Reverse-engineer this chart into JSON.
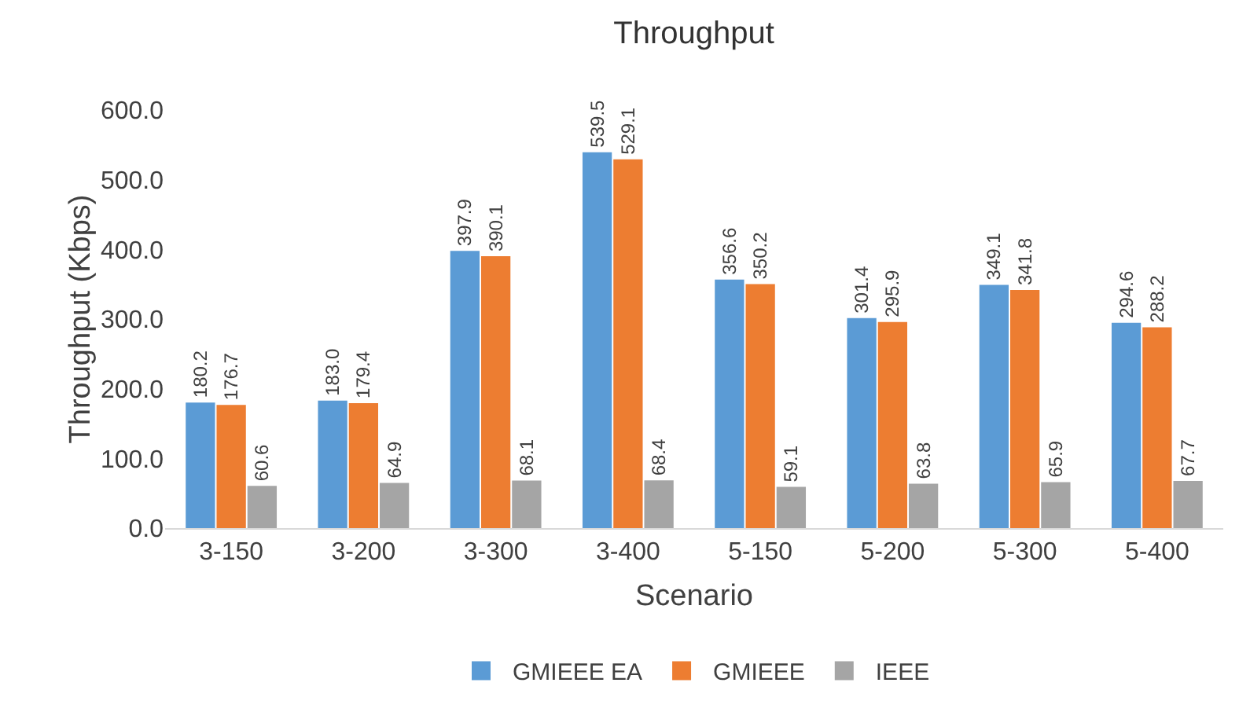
{
  "chart_data": {
    "type": "bar",
    "title": "Throughput",
    "xlabel": "Scenario",
    "ylabel": "Throughput (Kbps)",
    "categories": [
      "3-150",
      "3-200",
      "3-300",
      "3-400",
      "5-150",
      "5-200",
      "5-300",
      "5-400"
    ],
    "series": [
      {
        "name": "GMIEEE EA",
        "color": "#5b9bd5",
        "values": [
          180.2,
          183.0,
          397.9,
          539.5,
          356.6,
          301.4,
          349.1,
          294.6
        ],
        "value_labels": [
          "180.2",
          "183.0",
          "397.9",
          "539.5",
          "356.6",
          "301.4",
          "349.1",
          "294.6"
        ]
      },
      {
        "name": "GMIEEE",
        "color": "#ed7d31",
        "values": [
          176.7,
          179.4,
          390.1,
          529.1,
          350.2,
          295.9,
          341.8,
          288.2
        ],
        "value_labels": [
          "176.7",
          "179.4",
          "390.1",
          "529.1",
          "350.2",
          "295.9",
          "341.8",
          "288.2"
        ]
      },
      {
        "name": "IEEE",
        "color": "#a5a5a5",
        "values": [
          60.6,
          64.9,
          68.1,
          68.4,
          59.1,
          63.8,
          65.9,
          67.7
        ],
        "value_labels": [
          "60.6",
          "64.9",
          "68.1",
          "68.4",
          "59.1",
          "63.8",
          "65.9",
          "67.7"
        ]
      }
    ],
    "ylim": [
      0,
      600
    ],
    "yticks": [
      {
        "value": 0,
        "label": "0.0"
      },
      {
        "value": 100,
        "label": "100.0"
      },
      {
        "value": 200,
        "label": "200.0"
      },
      {
        "value": 300,
        "label": "300.0"
      },
      {
        "value": 400,
        "label": "400.0"
      },
      {
        "value": 500,
        "label": "500.0"
      },
      {
        "value": 600,
        "label": "600.0"
      }
    ],
    "grid": false,
    "legend": "bottom"
  }
}
